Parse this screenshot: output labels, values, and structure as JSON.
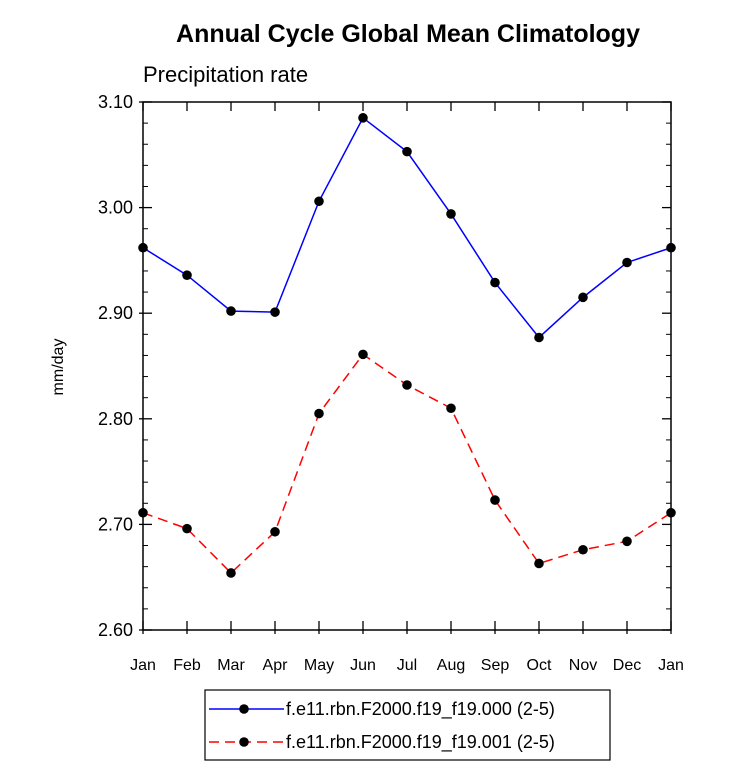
{
  "chart_data": {
    "type": "line",
    "title": "Annual Cycle Global Mean Climatology",
    "subtitle": "Precipitation rate",
    "xlabel": "",
    "ylabel": "mm/day",
    "categories": [
      "Jan",
      "Feb",
      "Mar",
      "Apr",
      "May",
      "Jun",
      "Jul",
      "Aug",
      "Sep",
      "Oct",
      "Nov",
      "Dec",
      "Jan"
    ],
    "ylim": [
      2.6,
      3.1
    ],
    "yticks": [
      "3.10",
      "3.00",
      "2.90",
      "2.80",
      "2.70",
      "2.60"
    ],
    "series": [
      {
        "name": "f.e11.rbn.F2000.f19_f19.000 (2-5)",
        "color": "#0000ff",
        "dash": "solid",
        "values": [
          2.962,
          2.936,
          2.902,
          2.901,
          3.006,
          3.085,
          3.053,
          2.994,
          2.929,
          2.877,
          2.915,
          2.948,
          2.962
        ]
      },
      {
        "name": "f.e11.rbn.F2000.f19_f19.001 (2-5)",
        "color": "#ff0000",
        "dash": "dashed",
        "values": [
          2.711,
          2.696,
          2.654,
          2.693,
          2.805,
          2.861,
          2.832,
          2.81,
          2.723,
          2.663,
          2.676,
          2.684,
          2.711
        ]
      }
    ],
    "marker": "circle",
    "marker_color": "#000000",
    "legend_position": "bottom"
  }
}
